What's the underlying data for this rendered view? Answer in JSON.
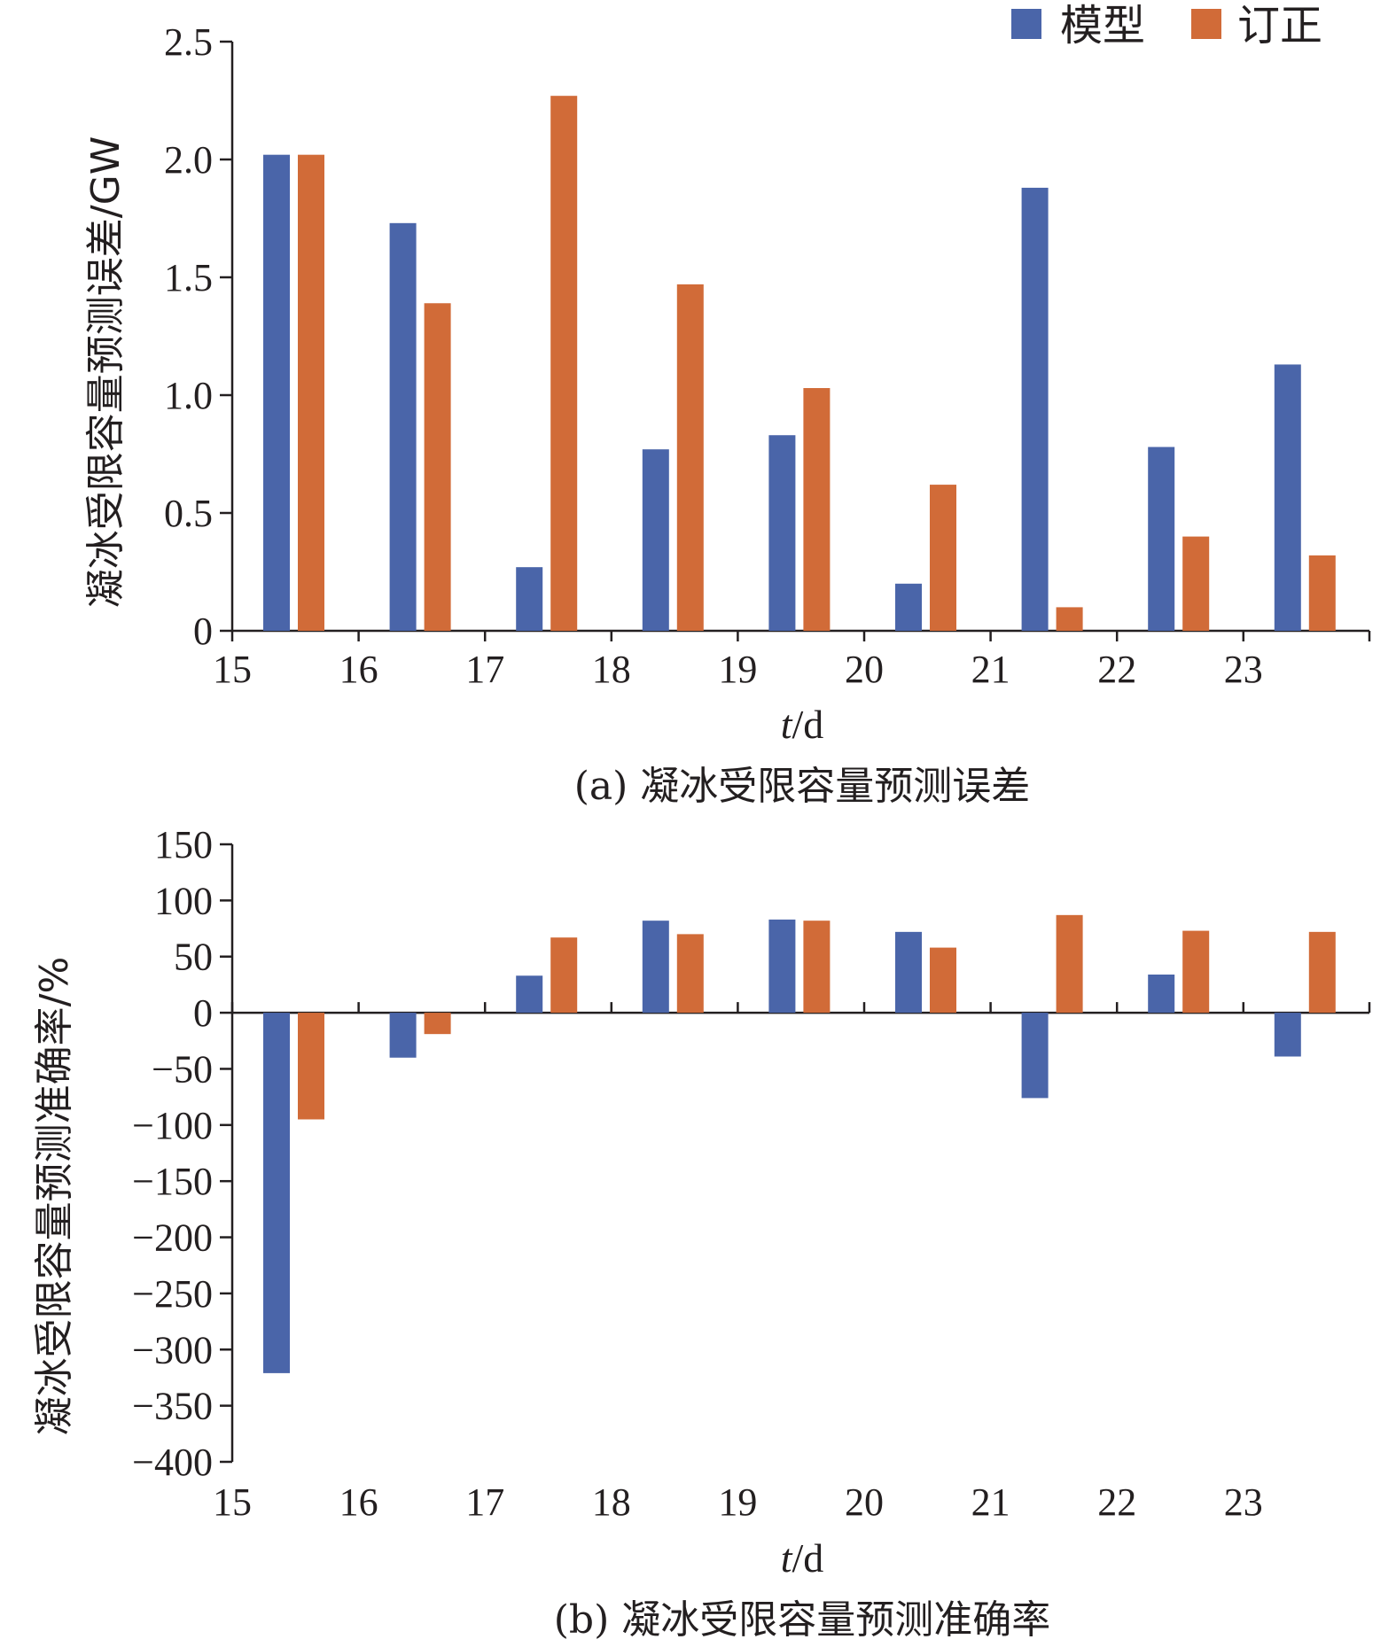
{
  "legend": {
    "model_label": "模型",
    "corrected_label": "订正"
  },
  "colors": {
    "model": "#4a65a9",
    "corrected": "#d16b38",
    "axis": "#231f20"
  },
  "chart_data": [
    {
      "type": "bar",
      "title": "(a) 凝冰受限容量预测误差",
      "xlabel": "t/d",
      "ylabel": "凝冰受限容量预测误差/GW",
      "x_ticks": [
        "15",
        "16",
        "17",
        "18",
        "19",
        "20",
        "21",
        "22",
        "23"
      ],
      "y_ticks": [
        "0",
        "0.5",
        "1.0",
        "1.5",
        "2.0",
        "2.5"
      ],
      "ylim": [
        0,
        2.5
      ],
      "categories": [
        "15",
        "16",
        "17",
        "18",
        "19",
        "20",
        "21",
        "22",
        "23"
      ],
      "series": [
        {
          "name": "模型",
          "values": [
            2.02,
            1.73,
            0.27,
            0.77,
            0.83,
            0.2,
            1.88,
            0.78,
            1.13
          ]
        },
        {
          "name": "订正",
          "values": [
            2.02,
            1.39,
            2.27,
            1.47,
            1.03,
            0.62,
            0.1,
            0.4,
            0.32
          ]
        }
      ],
      "legend_position": "top-right",
      "grid": false
    },
    {
      "type": "bar",
      "title": "(b) 凝冰受限容量预测准确率",
      "xlabel": "t/d",
      "ylabel": "凝冰受限容量预测准确率/%",
      "x_ticks": [
        "15",
        "16",
        "17",
        "18",
        "19",
        "20",
        "21",
        "22",
        "23"
      ],
      "y_ticks": [
        "150",
        "100",
        "50",
        "0",
        "−50",
        "−100",
        "−150",
        "−200",
        "−250",
        "−300",
        "−350",
        "−400"
      ],
      "ylim": [
        -400,
        150
      ],
      "categories": [
        "15",
        "16",
        "17",
        "18",
        "19",
        "20",
        "21",
        "22",
        "23"
      ],
      "series": [
        {
          "name": "模型",
          "values": [
            -321,
            -40,
            33,
            82,
            83,
            72,
            -76,
            34,
            -39
          ]
        },
        {
          "name": "订正",
          "values": [
            -95,
            -19,
            67,
            70,
            82,
            58,
            87,
            73,
            72
          ]
        }
      ],
      "grid": false
    }
  ]
}
